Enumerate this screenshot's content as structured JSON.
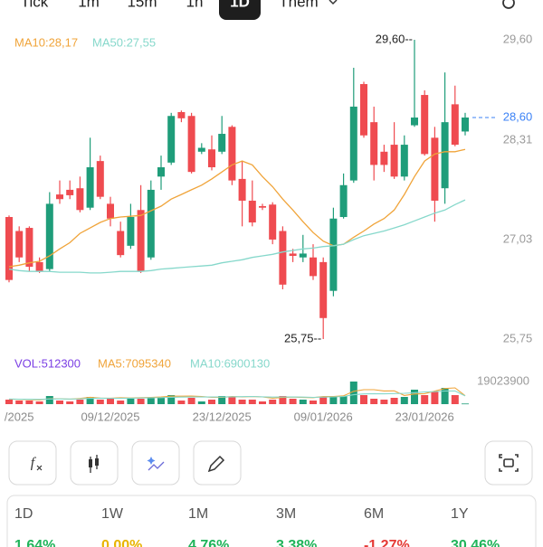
{
  "top_tabs": {
    "tabs": [
      "Tick",
      "1m",
      "15m",
      "1h",
      "1D",
      "Thêm"
    ],
    "selected_index": 4
  },
  "chart_data": [
    {
      "type": "candlestick",
      "categories": [
        null,
        "/2025",
        null,
        null,
        null,
        null,
        null,
        null,
        null,
        null,
        "09/12/2025",
        null,
        null,
        null,
        null,
        null,
        null,
        null,
        null,
        null,
        null,
        "23/12/2025",
        null,
        null,
        null,
        null,
        null,
        null,
        null,
        null,
        null,
        "09/01/2026",
        null,
        null,
        null,
        null,
        null,
        null,
        null,
        null,
        null,
        "23/01/2026",
        null,
        null,
        null,
        null
      ],
      "open": [
        27.32,
        27.14,
        27.18,
        26.74,
        26.65,
        27.61,
        27.67,
        27.69,
        27.44,
        28.04,
        27.49,
        27.14,
        26.95,
        27.41,
        26.8,
        27.84,
        28.02,
        28.67,
        28.62,
        28.16,
        28.19,
        28.16,
        28.48,
        27.81,
        27.53,
        27.46,
        27.48,
        27.14,
        26.85,
        26.8,
        26.8,
        26.74,
        26.37,
        27.32,
        27.79,
        29.03,
        28.54,
        28.16,
        28.25,
        27.84,
        28.5,
        28.89,
        28.34,
        27.69,
        28.77,
        28.42
      ],
      "high": [
        27.34,
        27.2,
        27.2,
        26.8,
        27.64,
        27.79,
        27.79,
        27.84,
        28.34,
        28.11,
        27.58,
        27.26,
        27.49,
        27.73,
        27.79,
        28.11,
        28.66,
        28.69,
        28.66,
        28.27,
        28.37,
        28.62,
        28.5,
        28.04,
        27.79,
        27.49,
        27.51,
        27.2,
        26.91,
        27.09,
        26.97,
        26.8,
        27.44,
        27.88,
        29.24,
        29.06,
        28.74,
        28.25,
        28.54,
        28.37,
        29.6,
        28.95,
        28.48,
        29.18,
        29.01,
        28.66
      ],
      "low": [
        26.48,
        26.74,
        26.62,
        26.6,
        26.62,
        27.49,
        27.55,
        27.38,
        27.41,
        27.55,
        27.2,
        26.8,
        26.91,
        26.6,
        26.77,
        27.67,
        27.99,
        28.54,
        27.88,
        28.13,
        27.92,
        28.13,
        27.73,
        27.2,
        27.2,
        27.41,
        26.97,
        26.39,
        26.74,
        26.74,
        26.51,
        25.75,
        26.3,
        27.3,
        27.76,
        28.34,
        27.79,
        27.9,
        27.81,
        27.79,
        28.48,
        28.11,
        27.26,
        27.49,
        28.23,
        28.37
      ],
      "close": [
        26.51,
        26.8,
        26.68,
        26.62,
        27.49,
        27.55,
        27.6,
        27.41,
        27.96,
        27.58,
        27.3,
        26.83,
        27.32,
        26.62,
        27.67,
        27.96,
        28.62,
        28.59,
        27.9,
        28.21,
        27.96,
        28.39,
        27.79,
        27.53,
        27.25,
        27.44,
        27.03,
        26.45,
        26.82,
        26.85,
        26.56,
        26.02,
        27.3,
        27.73,
        28.74,
        28.37,
        27.99,
        27.99,
        27.84,
        28.25,
        28.6,
        28.13,
        27.53,
        28.54,
        28.25,
        28.6
      ],
      "up_color": "#1f9d7a",
      "down_color": "#ef4b50",
      "ylim": [
        25.75,
        29.6
      ],
      "yticks": [
        {
          "value": 25.75,
          "label": "25,75"
        },
        {
          "value": 27.03,
          "label": "27,03"
        },
        {
          "value": 28.31,
          "label": "28,31"
        },
        {
          "value": 29.6,
          "label": "29,60"
        }
      ],
      "series": [
        {
          "name": "MA10:28,17",
          "color": "#f0a43a",
          "values": [
            26.68,
            26.7,
            26.73,
            26.75,
            26.82,
            26.91,
            26.99,
            27.11,
            27.18,
            27.25,
            27.3,
            27.32,
            27.33,
            27.34,
            27.4,
            27.46,
            27.55,
            27.61,
            27.67,
            27.73,
            27.81,
            27.9,
            27.99,
            28.04,
            27.99,
            27.84,
            27.71,
            27.55,
            27.41,
            27.26,
            27.12,
            27.01,
            26.95,
            26.97,
            27.06,
            27.14,
            27.23,
            27.3,
            27.41,
            27.61,
            27.84,
            28.04,
            28.13,
            28.16,
            28.16,
            28.19
          ]
        },
        {
          "name": "MA50:27,55",
          "color": "#86d8cb",
          "values": [
            26.65,
            26.63,
            26.62,
            26.62,
            26.62,
            26.61,
            26.61,
            26.61,
            26.6,
            26.6,
            26.61,
            26.62,
            26.62,
            26.62,
            26.63,
            26.65,
            26.66,
            26.67,
            26.68,
            26.69,
            26.7,
            26.73,
            26.75,
            26.77,
            26.8,
            26.82,
            26.84,
            26.87,
            26.89,
            26.91,
            26.92,
            26.94,
            26.95,
            26.97,
            27.03,
            27.08,
            27.11,
            27.14,
            27.18,
            27.22,
            27.27,
            27.32,
            27.37,
            27.41,
            27.48,
            27.54
          ]
        }
      ],
      "last_price": {
        "value": 28.6,
        "label": "28,60"
      },
      "max_label": "29,60--",
      "min_label": "25,75--"
    },
    {
      "type": "volume",
      "ylim": [
        0,
        19023900
      ],
      "yticks": [
        19023900
      ],
      "series": [
        {
          "name": "VOL:512300",
          "color": "#7b3fe4",
          "values": [
            3805000,
            3044000,
            3044000,
            2283000,
            6849000,
            3044000,
            2283000,
            3805000,
            6088000,
            3805000,
            4566000,
            3044000,
            4566000,
            4566000,
            5327000,
            6088000,
            7610000,
            3044000,
            5327000,
            2283000,
            3805000,
            6849000,
            6088000,
            3805000,
            3805000,
            2283000,
            3805000,
            6849000,
            4566000,
            3805000,
            3044000,
            6088000,
            6849000,
            6849000,
            19023900,
            7610000,
            4566000,
            3805000,
            5327000,
            6088000,
            12176000,
            7610000,
            10654000,
            13698000,
            7610000,
            512300
          ]
        },
        {
          "name": "MA5:7095340",
          "color": "#f0a43a",
          "values": [
            4200000,
            4000000,
            3900000,
            3600000,
            4600000,
            4600000,
            4200000,
            4800000,
            5800000,
            5100000,
            5000000,
            5400000,
            5200000,
            5500000,
            5700000,
            6100000,
            6700000,
            6700000,
            6800000,
            6400000,
            5800000,
            5800000,
            6400000,
            6100000,
            6400000,
            6100000,
            5000000,
            5600000,
            5900000,
            5600000,
            5500000,
            6400000,
            6400000,
            7000000,
            10800000,
            12200000,
            12200000,
            11100000,
            11200000,
            7300000,
            8500000,
            8800000,
            11000000,
            13200000,
            13700000,
            7095340
          ]
        },
        {
          "name": "MA10:6900130",
          "color": "#86d8cb",
          "values": [
            4300000,
            4200000,
            4100000,
            4000000,
            4300000,
            4400000,
            4300000,
            4400000,
            4900000,
            5000000,
            4900000,
            4900000,
            5000000,
            5200000,
            5400000,
            5500000,
            5800000,
            5900000,
            6000000,
            6000000,
            6000000,
            6000000,
            6200000,
            6300000,
            6500000,
            6200000,
            5900000,
            6000000,
            6000000,
            5900000,
            5700000,
            5900000,
            6100000,
            6400000,
            7900000,
            8600000,
            8800000,
            8700000,
            8900000,
            9100000,
            9600000,
            10300000,
            10500000,
            11000000,
            11100000,
            6900130
          ]
        }
      ]
    }
  ],
  "performance": {
    "periods": [
      "1D",
      "1W",
      "1M",
      "3M",
      "6M",
      "1Y"
    ],
    "changes": [
      "1,64%",
      "0,00%",
      "4,76%",
      "3,38%",
      "-1,27%",
      "30,46%"
    ],
    "colors": [
      "#1fb45a",
      "#e8b400",
      "#1fb45a",
      "#1fb45a",
      "#e53935",
      "#1fb45a"
    ]
  }
}
